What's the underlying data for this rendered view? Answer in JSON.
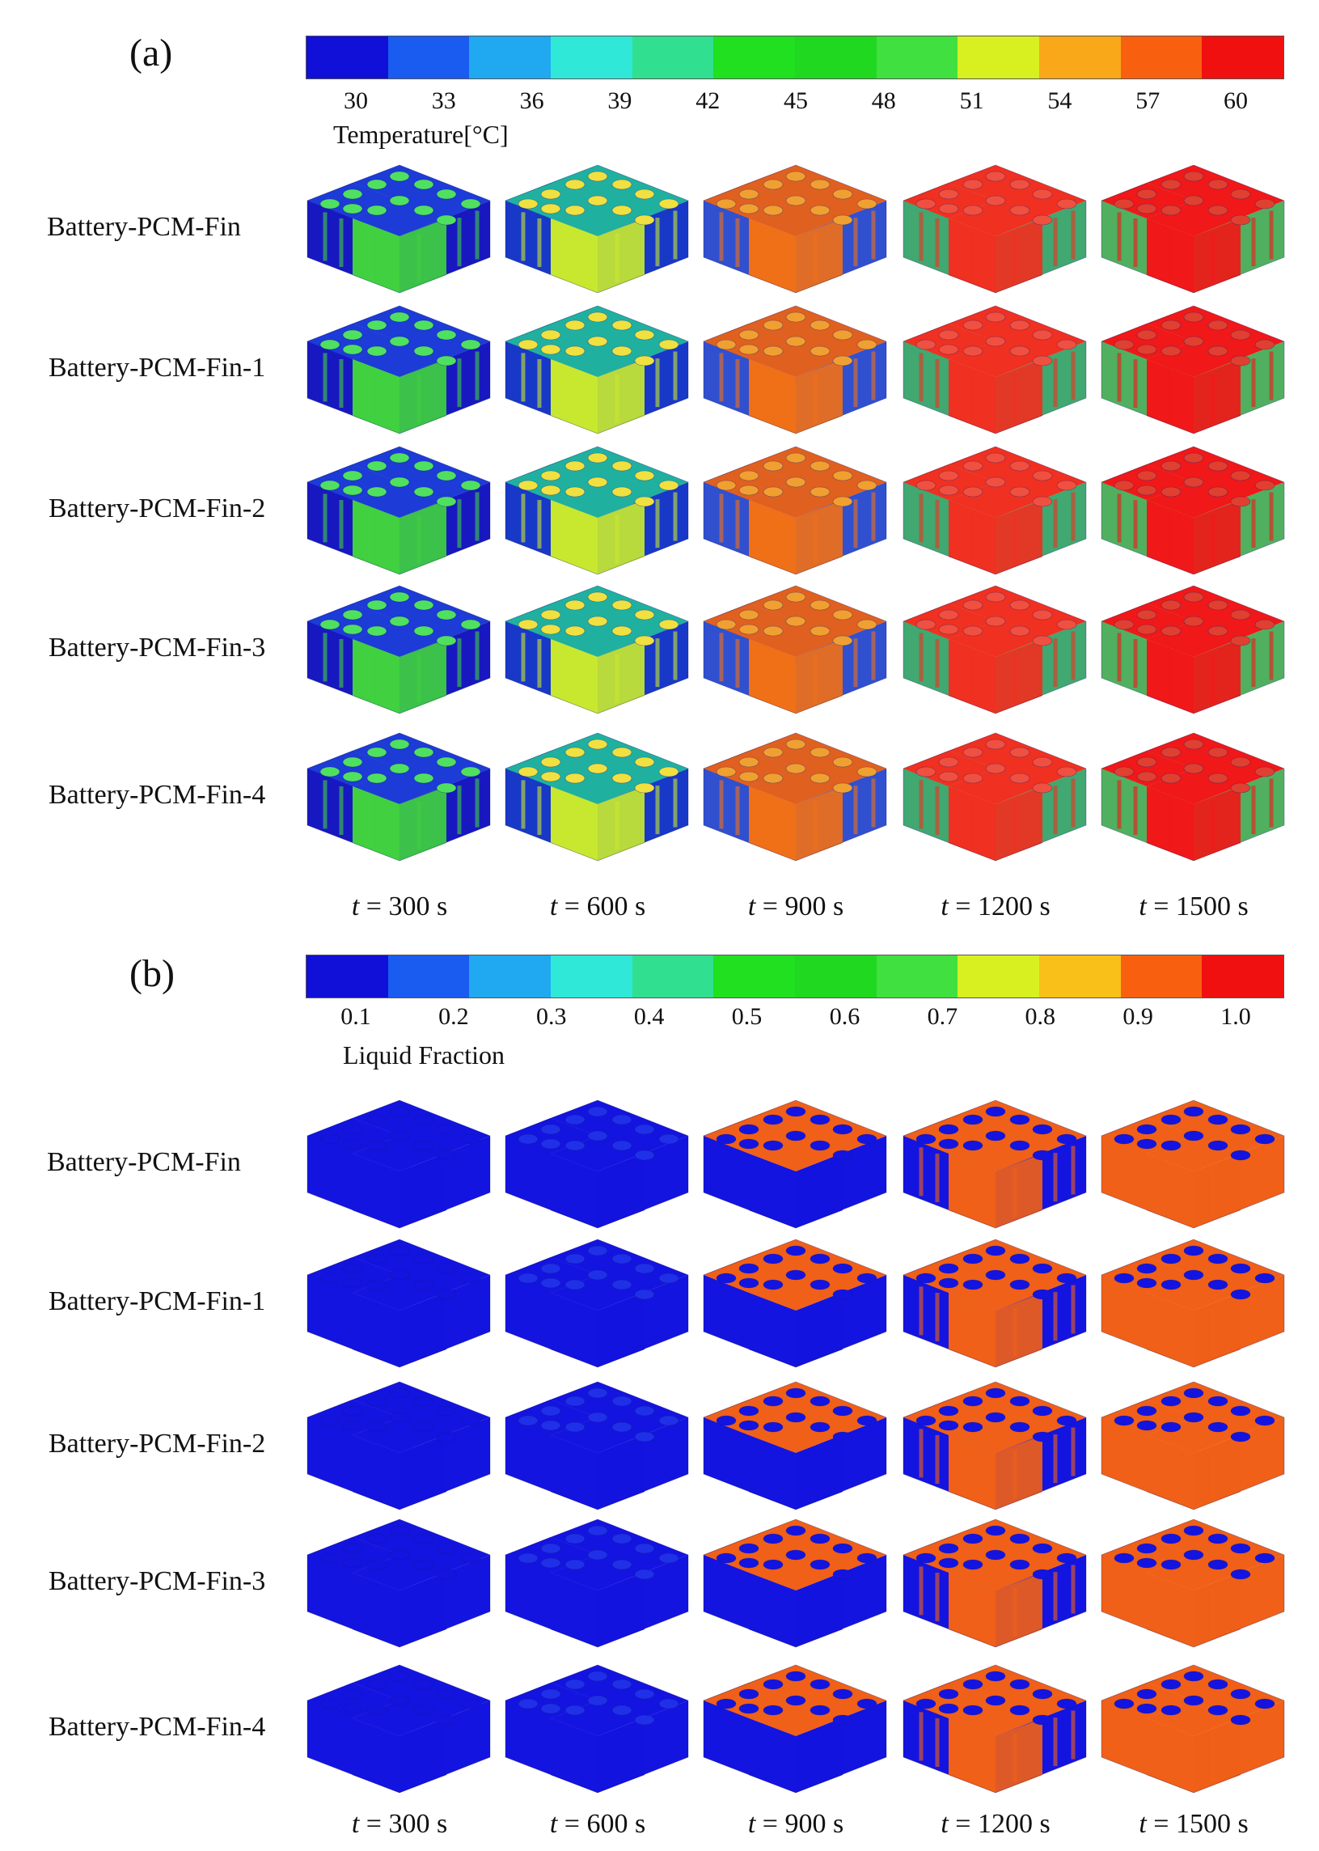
{
  "panels": [
    {
      "label": "(a)",
      "colorbar_title": "Temperature[°C]",
      "colorbar_colors": [
        "#1010d8",
        "#1a5cf0",
        "#20a8f0",
        "#30e8d8",
        "#30e090",
        "#20e020",
        "#20d820",
        "#40e040",
        "#d8f020",
        "#f8a818",
        "#f86010",
        "#f01010"
      ],
      "ticks": [
        "30",
        "33",
        "36",
        "39",
        "42",
        "45",
        "48",
        "51",
        "54",
        "57",
        "60"
      ],
      "rows": [
        "Battery-PCM-Fin",
        "Battery-PCM-Fin-1",
        "Battery-PCM-Fin-2",
        "Battery-PCM-Fin-3",
        "Battery-PCM-Fin-4"
      ],
      "times": [
        "t = 300 s",
        "t = 600 s",
        "t = 900 s",
        "t = 1200 s",
        "t = 1500 s"
      ]
    },
    {
      "label": "(b)",
      "colorbar_title": "Liquid Fraction",
      "colorbar_colors": [
        "#1010d8",
        "#1a5cf0",
        "#20a8f0",
        "#30e8d8",
        "#30e090",
        "#20e020",
        "#20d820",
        "#40e040",
        "#d8f020",
        "#f8c018",
        "#f86010",
        "#f01010"
      ],
      "ticks": [
        "0.1",
        "0.2",
        "0.3",
        "0.4",
        "0.5",
        "0.6",
        "0.7",
        "0.8",
        "0.9",
        "1.0"
      ],
      "rows": [
        "Battery-PCM-Fin",
        "Battery-PCM-Fin-1",
        "Battery-PCM-Fin-2",
        "Battery-PCM-Fin-3",
        "Battery-PCM-Fin-4"
      ],
      "times": [
        "t = 300 s",
        "t = 600 s",
        "t = 900 s",
        "t = 1200 s",
        "t = 1500 s"
      ]
    }
  ],
  "temperature_stage_colors": {
    "0": {
      "side": "#1818c0",
      "top": "#1d3bd6",
      "core": "#40d040",
      "spot": "#50e060"
    },
    "1": {
      "side": "#1838c8",
      "top": "#20b0a0",
      "core": "#c8e830",
      "spot": "#f0e040"
    },
    "2": {
      "side": "#3050d0",
      "top": "#e06020",
      "core": "#f07018",
      "spot": "#f0a030"
    },
    "3": {
      "side": "#40a870",
      "top": "#f03020",
      "core": "#f03020",
      "spot": "#f05040"
    },
    "4": {
      "side": "#50b060",
      "top": "#f01818",
      "core": "#f01818",
      "spot": "#e04030"
    }
  },
  "liquid_stage_colors": {
    "0": {
      "side": "#1414e0",
      "top": "#1414e0",
      "core": "#1414e0",
      "spot": "#1414e0"
    },
    "1": {
      "side": "#1414e0",
      "top": "#1414e0",
      "core": "#1414e0",
      "spot": "#2030e8"
    },
    "2": {
      "side": "#1414e0",
      "top": "#f06018",
      "core": "#1414e0",
      "spot": "#1414e0"
    },
    "3": {
      "side": "#1414e0",
      "top": "#f06018",
      "core": "#f06018",
      "spot": "#1414e0"
    },
    "4": {
      "side": "#f06018",
      "top": "#f06018",
      "core": "#f06018",
      "spot": "#1414e0"
    }
  }
}
